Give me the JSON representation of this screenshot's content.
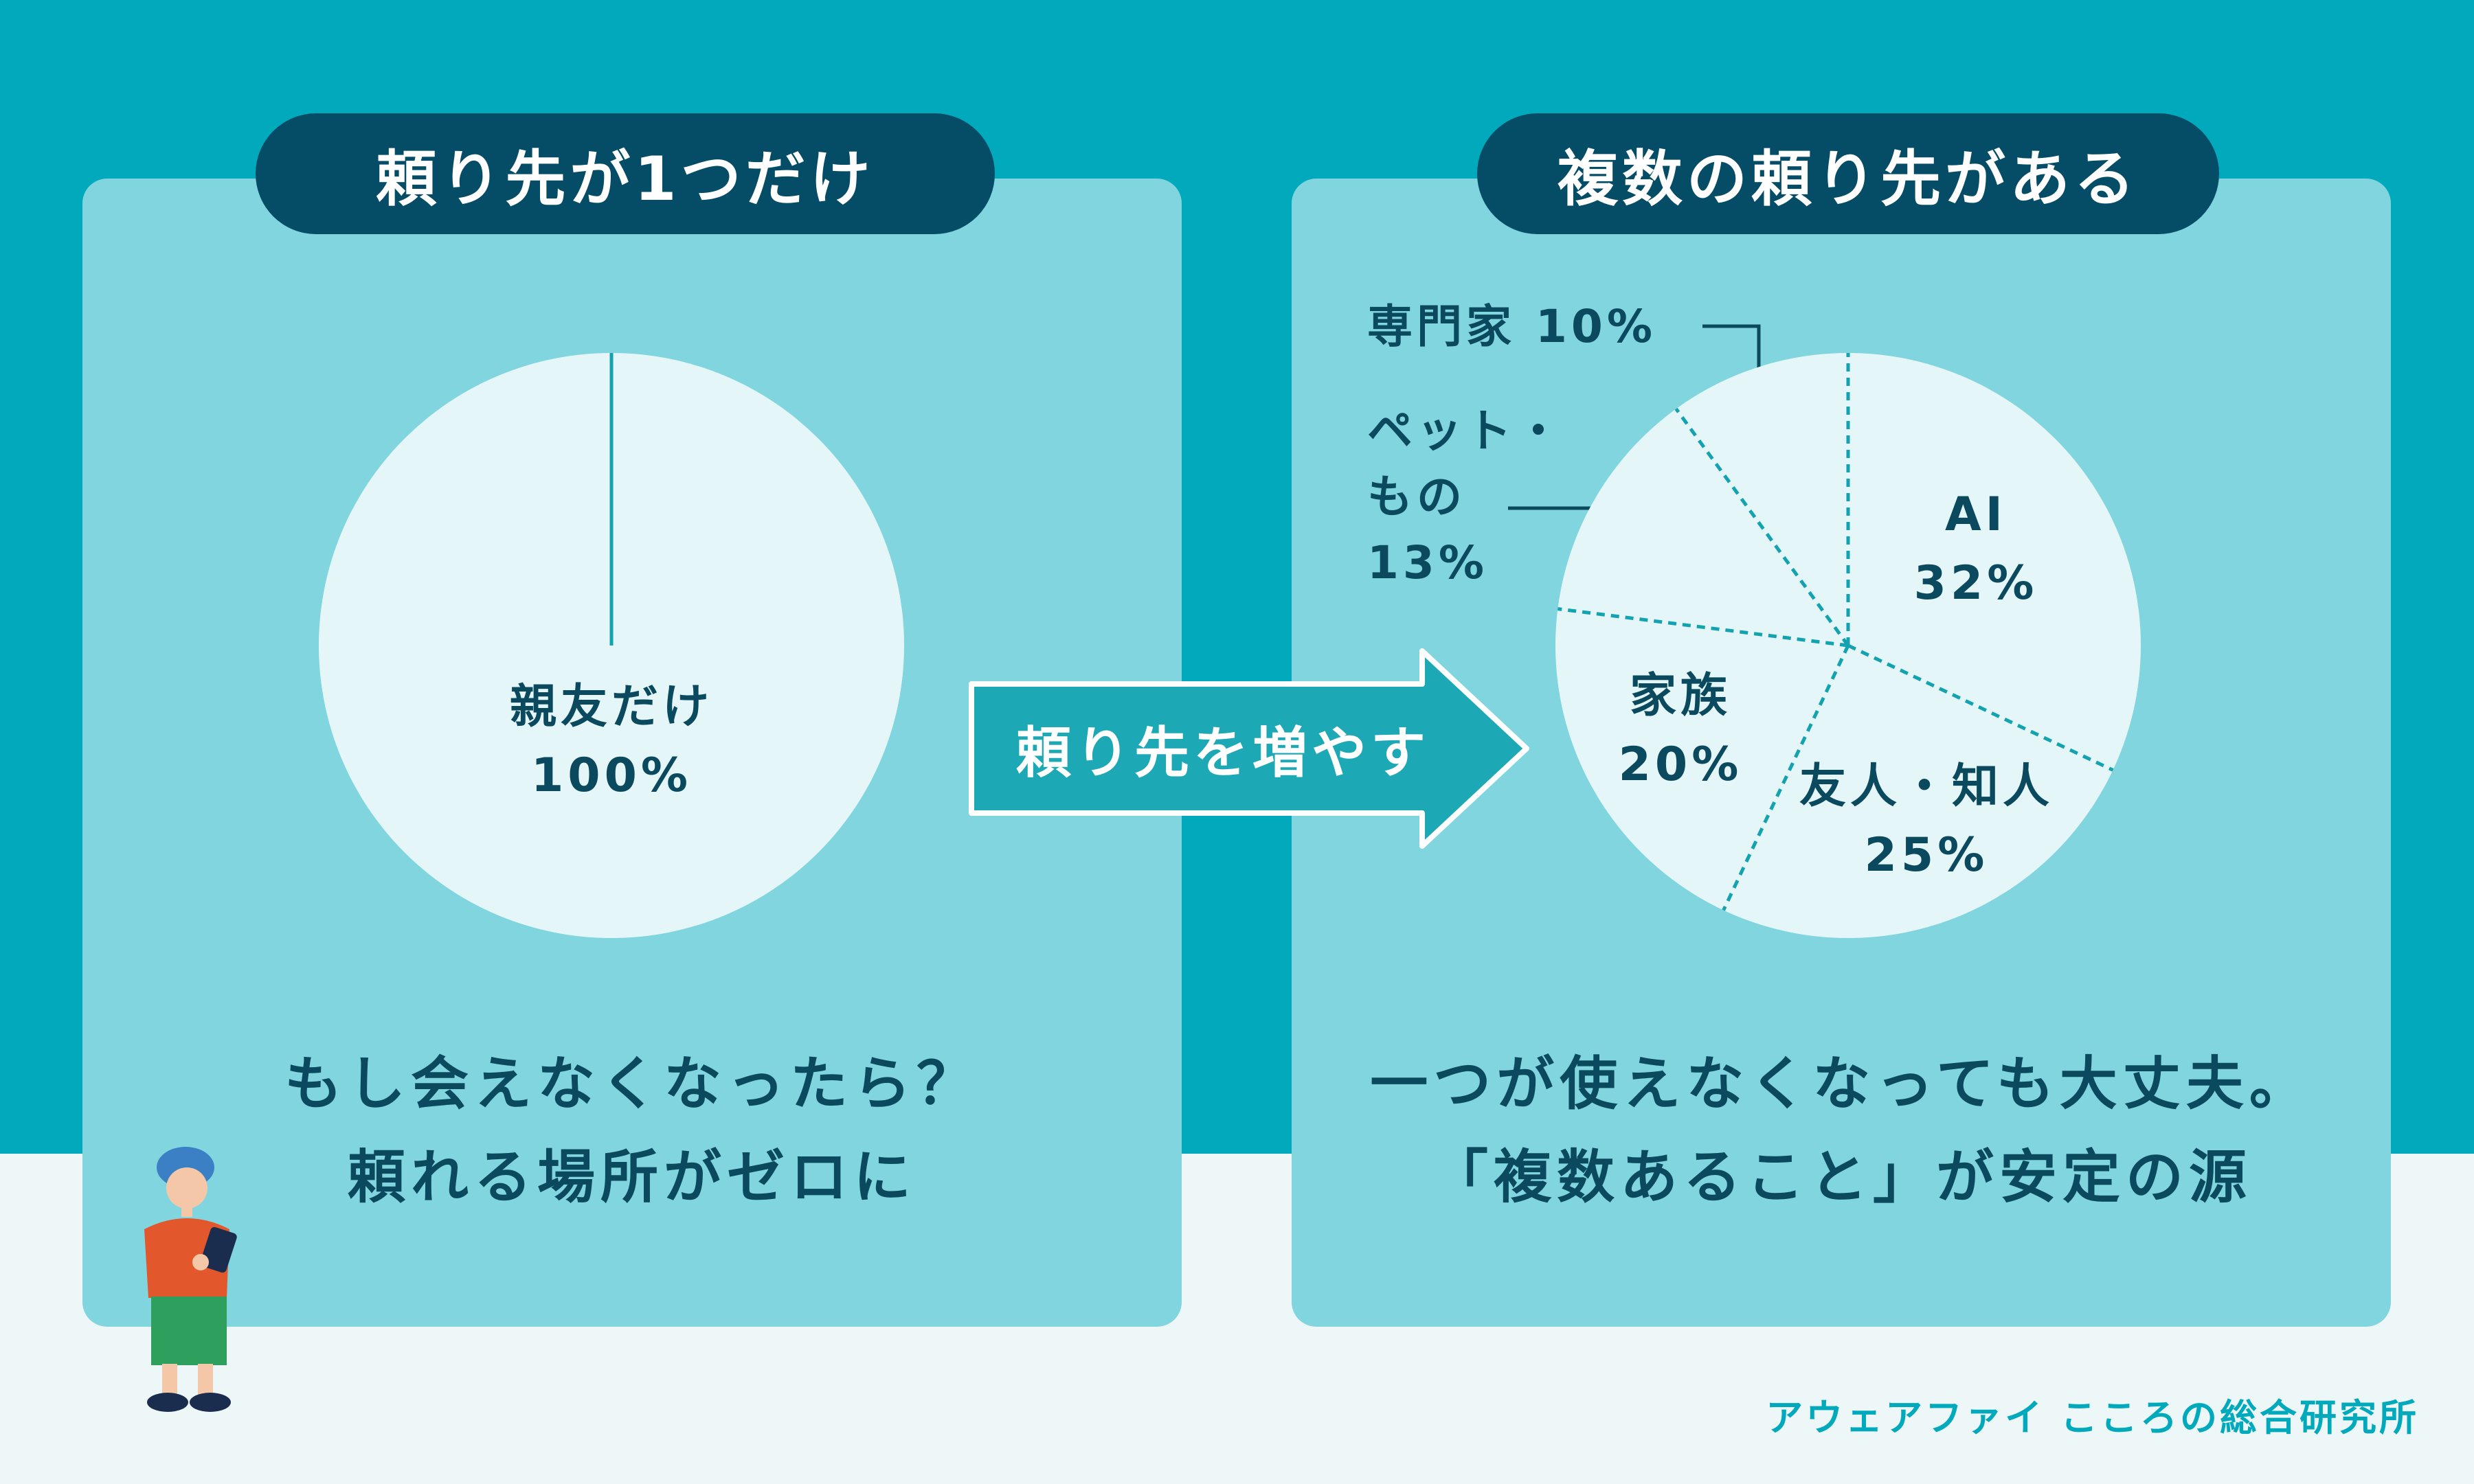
{
  "left_panel": {
    "title": "頼り先が1つだけ",
    "caption_lines": [
      "もし会えなくなったら？",
      "頼れる場所がゼロに"
    ]
  },
  "right_panel": {
    "title": "複数の頼り先がある",
    "caption_lines": [
      "一つが使えなくなっても大丈夫。",
      "「複数あること」が安定の源"
    ]
  },
  "arrow": {
    "label": "頼り先を増やす"
  },
  "credit": "アウェアファイ こころの総合研究所",
  "colors": {
    "background": "#00a9bb",
    "panel": "#80d5de",
    "pill": "#054c66",
    "pie_fill": "#e5f6f9",
    "divider": "#13a2b0",
    "text": "#0b4a5e"
  },
  "chart_data": [
    {
      "type": "pie",
      "slices": [
        {
          "label": "親友だけ",
          "value": 100,
          "value_label": "100%"
        }
      ]
    },
    {
      "type": "pie",
      "slices": [
        {
          "label": "AI",
          "value": 32,
          "value_label": "32%"
        },
        {
          "label": "友人・知人",
          "value": 25,
          "value_label": "25%"
        },
        {
          "label": "家族",
          "value": 20,
          "value_label": "20%"
        },
        {
          "label": "ペット・もの",
          "value": 13,
          "value_label": "13%",
          "label_lines": [
            "ペット・",
            "もの",
            "13%"
          ]
        },
        {
          "label": "専門家",
          "value": 10,
          "value_label": "10%",
          "label_text": "専門家 10%"
        }
      ]
    }
  ]
}
